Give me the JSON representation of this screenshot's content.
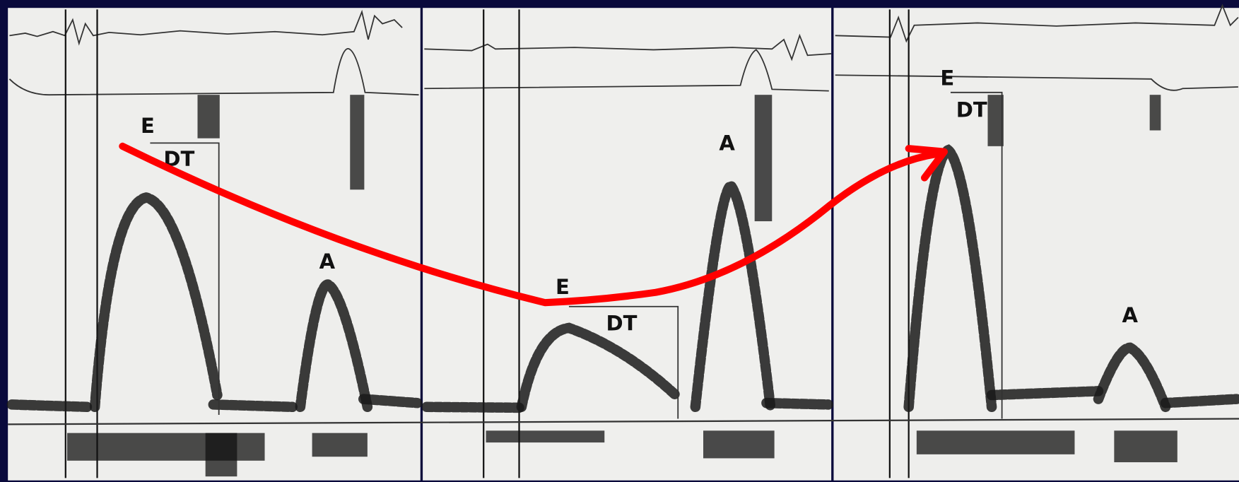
{
  "panels": [
    {
      "e": "E",
      "dt": "DT",
      "a": "A"
    },
    {
      "e": "E",
      "dt": "DT",
      "a": "A"
    },
    {
      "e": "E",
      "dt": "DT",
      "a": "A"
    }
  ]
}
